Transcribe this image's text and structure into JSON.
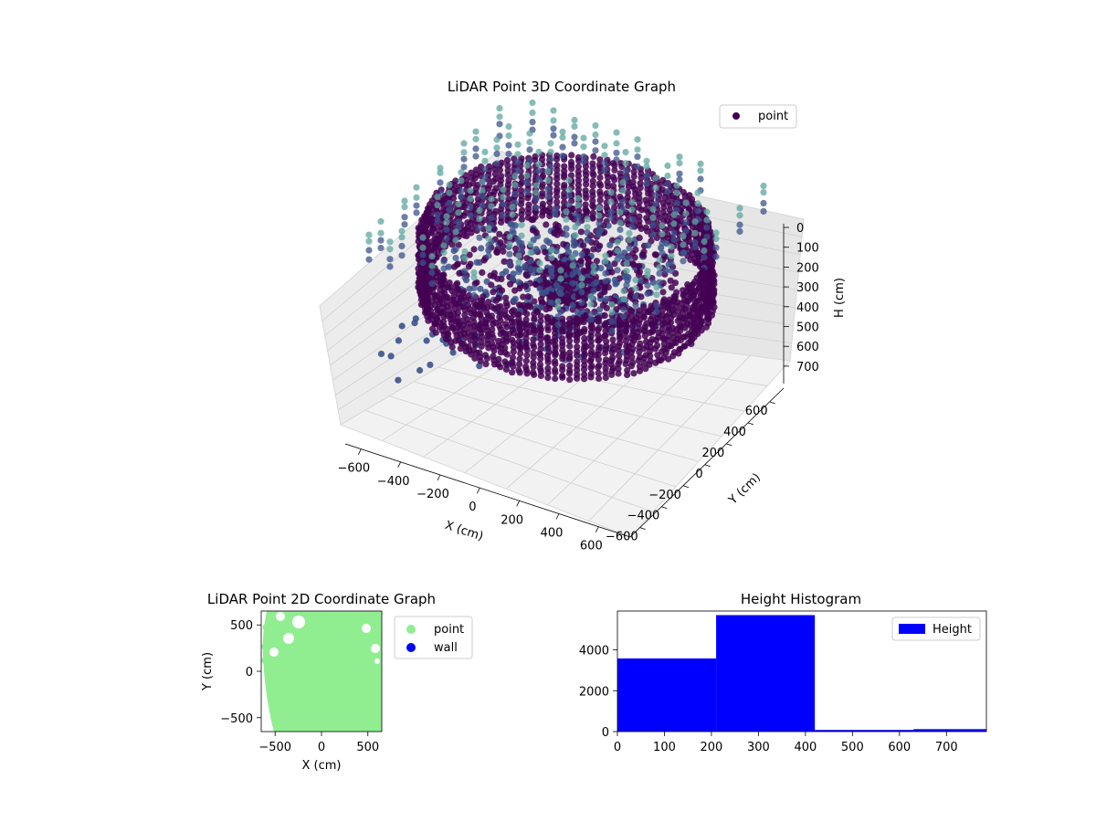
{
  "colors": {
    "point_dark": "#440154",
    "point_mid": "#3b528b",
    "point_teal": "#5ea5a0",
    "point_light": "#90ee90",
    "wall": "#0000ff",
    "hist_bar": "#0000ff"
  },
  "chart_data": [
    {
      "type": "scatter",
      "projection": "3d",
      "title": "LiDAR Point 3D Coordinate Graph",
      "xlabel": "X (cm)",
      "ylabel": "Y (cm)",
      "zlabel": "H (cm)",
      "xlim": [
        -650,
        650
      ],
      "ylim": [
        -650,
        650
      ],
      "zlim": [
        750,
        0
      ],
      "x_ticks": [
        "−600",
        "−400",
        "−200",
        "0",
        "200",
        "400",
        "600"
      ],
      "y_ticks": [
        "−600",
        "−400",
        "−200",
        "0",
        "200",
        "400",
        "600"
      ],
      "z_ticks": [
        "0",
        "100",
        "200",
        "300",
        "400",
        "500",
        "600",
        "700"
      ],
      "legend": {
        "entries": [
          "point"
        ],
        "placement": "top-right"
      },
      "colormap": "viridis",
      "series": [
        {
          "name": "point",
          "shape": "cylindrical room scan: wall ring of radius ~600 cm from H 0 to 420 cm, interior objects, ceiling grid near H 100 cm"
        }
      ],
      "grid": true
    },
    {
      "type": "scatter",
      "title": "LiDAR Point 2D Coordinate Graph",
      "xlabel": "X (cm)",
      "ylabel": "Y (cm)",
      "xlim": [
        -650,
        650
      ],
      "ylim": [
        -650,
        650
      ],
      "x_ticks": [
        "−500",
        "0",
        "500"
      ],
      "y_ticks": [
        "500",
        "0",
        "−500"
      ],
      "legend": {
        "entries": [
          "point",
          "wall"
        ],
        "placement": "outside-right"
      },
      "series": [
        {
          "name": "point",
          "color": "#90ee90"
        },
        {
          "name": "wall",
          "color": "#0000ff"
        }
      ]
    },
    {
      "type": "bar",
      "subtype": "histogram",
      "title": "Height Histogram",
      "xlim": [
        0,
        785
      ],
      "ylim": [
        0,
        5900
      ],
      "x_ticks": [
        "0",
        "100",
        "200",
        "300",
        "400",
        "500",
        "600",
        "700"
      ],
      "y_ticks": [
        "0",
        "2000",
        "4000"
      ],
      "legend": {
        "entries": [
          "Height"
        ],
        "placement": "top-right"
      },
      "bins": [
        {
          "start": 0,
          "end": 210,
          "count": 3580
        },
        {
          "start": 210,
          "end": 420,
          "count": 5700
        },
        {
          "start": 420,
          "end": 630,
          "count": 80
        },
        {
          "start": 630,
          "end": 785,
          "count": 120
        }
      ],
      "series": [
        {
          "name": "Height",
          "color": "#0000ff"
        }
      ]
    }
  ]
}
